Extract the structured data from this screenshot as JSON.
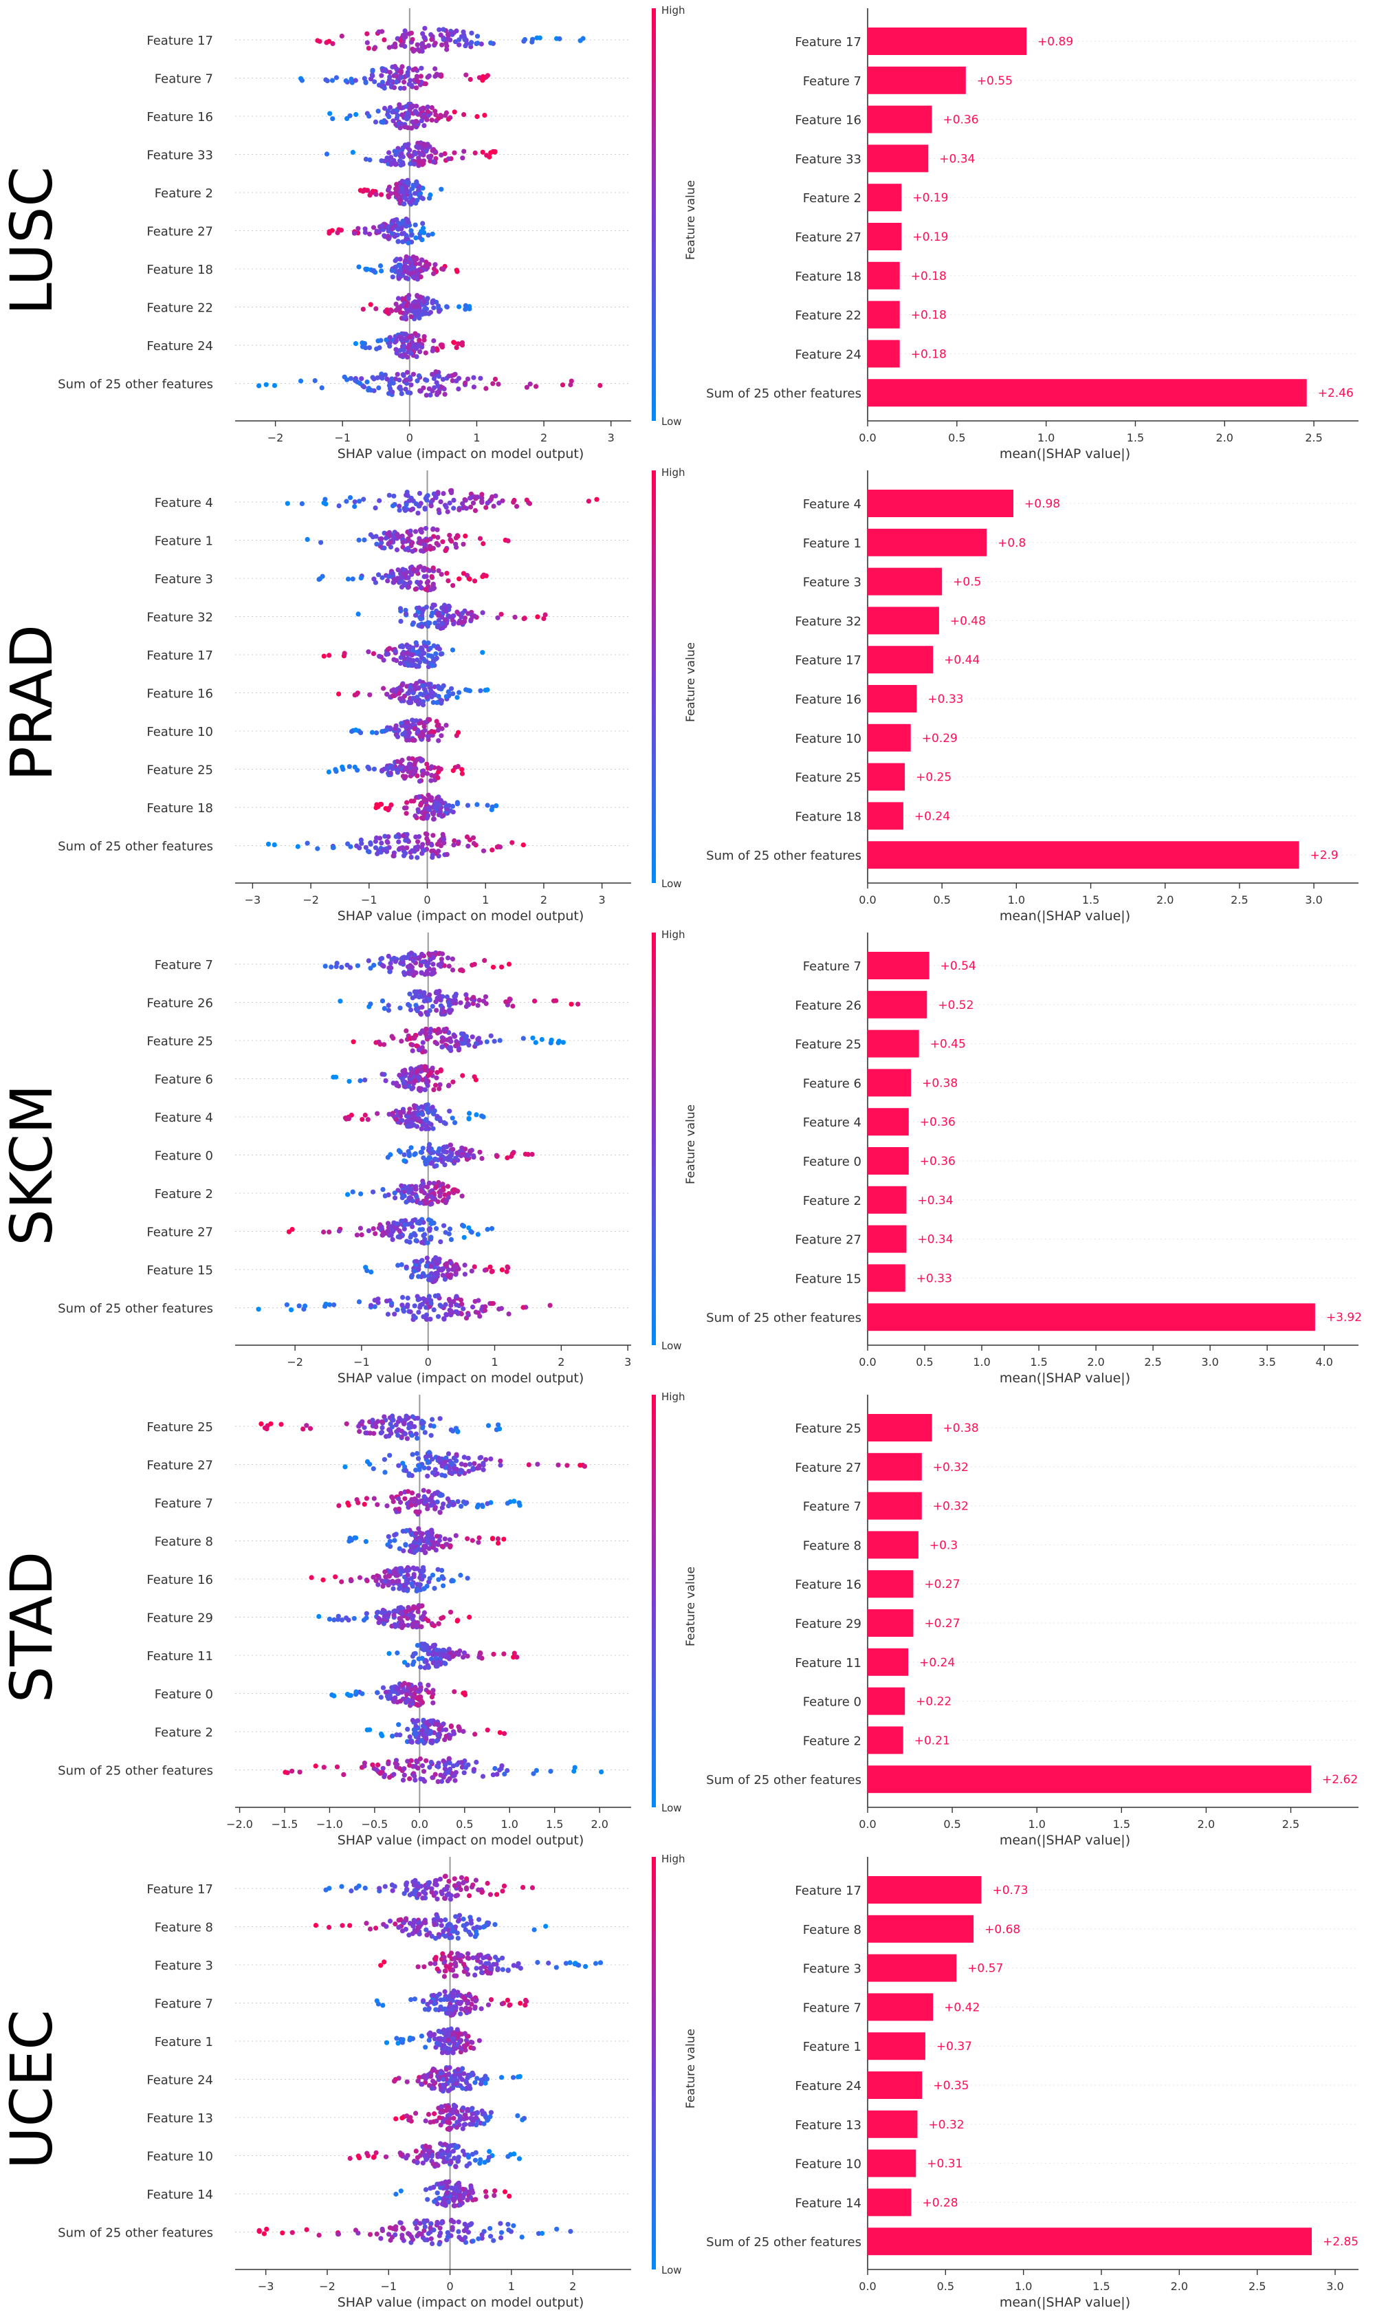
{
  "colors": {
    "low": "#008bfb",
    "mid": "#7c3bd6",
    "high": "#ff0052",
    "bar": "#ff0d57",
    "bar_label": "#ff0d57",
    "axis": "#333333",
    "zero_line": "#999999",
    "row_line": "#cccccc"
  },
  "colorbar": {
    "high_label": "High",
    "low_label": "Low",
    "title": "Feature value"
  },
  "chart_data": [
    {
      "panel": "LUSC",
      "type": "scatter",
      "kind": "beeswarm",
      "xlabel": "SHAP value (impact on model output)",
      "xlim": [
        -2.6,
        3.3
      ],
      "xticks": [
        -2,
        -1,
        0,
        1,
        2,
        3
      ],
      "features": [
        "Feature 17",
        "Feature 7",
        "Feature 16",
        "Feature 33",
        "Feature 2",
        "Feature 27",
        "Feature 18",
        "Feature 22",
        "Feature 24",
        "Sum of 25 other features"
      ],
      "ranges": [
        [
          -1.75,
          2.7
        ],
        [
          -1.7,
          1.35
        ],
        [
          -1.2,
          1.15
        ],
        [
          -1.25,
          1.3
        ],
        [
          -0.75,
          0.55
        ],
        [
          -1.2,
          0.5
        ],
        [
          -0.8,
          0.8
        ],
        [
          -0.7,
          0.95
        ],
        [
          -0.85,
          0.8
        ],
        [
          -2.4,
          3.1
        ]
      ]
    },
    {
      "panel": "LUSC",
      "type": "bar",
      "xlabel": "mean(|SHAP value|)",
      "xlim": [
        0,
        2.75
      ],
      "xticks": [
        0.0,
        0.5,
        1.0,
        1.5,
        2.0,
        2.5
      ],
      "categories": [
        "Feature 17",
        "Feature 7",
        "Feature 16",
        "Feature 33",
        "Feature 2",
        "Feature 27",
        "Feature 18",
        "Feature 22",
        "Feature 24",
        "Sum of 25 other features"
      ],
      "values": [
        0.89,
        0.55,
        0.36,
        0.34,
        0.19,
        0.19,
        0.18,
        0.18,
        0.18,
        2.46
      ],
      "value_labels": [
        "+0.89",
        "+0.55",
        "+0.36",
        "+0.34",
        "+0.19",
        "+0.19",
        "+0.18",
        "+0.18",
        "+0.18",
        "+2.46"
      ]
    },
    {
      "panel": "PRAD",
      "type": "scatter",
      "kind": "beeswarm",
      "xlabel": "SHAP value (impact on model output)",
      "xlim": [
        -3.3,
        3.5
      ],
      "xticks": [
        -3,
        -2,
        -1,
        0,
        1,
        2,
        3
      ],
      "features": [
        "Feature 4",
        "Feature 1",
        "Feature 3",
        "Feature 32",
        "Feature 17",
        "Feature 16",
        "Feature 10",
        "Feature 25",
        "Feature 18",
        "Sum of 25 other features"
      ],
      "ranges": [
        [
          -2.5,
          3.1
        ],
        [
          -2.5,
          1.4
        ],
        [
          -1.9,
          1.05
        ],
        [
          -1.2,
          2.1
        ],
        [
          -1.8,
          0.95
        ],
        [
          -1.65,
          1.1
        ],
        [
          -1.5,
          0.8
        ],
        [
          -1.75,
          0.7
        ],
        [
          -0.9,
          1.2
        ],
        [
          -2.85,
          2.2
        ]
      ]
    },
    {
      "panel": "PRAD",
      "type": "bar",
      "xlabel": "mean(|SHAP value|)",
      "xlim": [
        0,
        3.3
      ],
      "xticks": [
        0.0,
        0.5,
        1.0,
        1.5,
        2.0,
        2.5,
        3.0
      ],
      "categories": [
        "Feature 4",
        "Feature 1",
        "Feature 3",
        "Feature 32",
        "Feature 17",
        "Feature 16",
        "Feature 10",
        "Feature 25",
        "Feature 18",
        "Sum of 25 other features"
      ],
      "values": [
        0.98,
        0.8,
        0.5,
        0.48,
        0.44,
        0.33,
        0.29,
        0.25,
        0.24,
        2.9
      ],
      "value_labels": [
        "+0.98",
        "+0.8",
        "+0.5",
        "+0.48",
        "+0.44",
        "+0.33",
        "+0.29",
        "+0.25",
        "+0.24",
        "+2.9"
      ]
    },
    {
      "panel": "SKCM",
      "type": "scatter",
      "kind": "beeswarm",
      "xlabel": "SHAP value (impact on model output)",
      "xlim": [
        -2.9,
        3.05
      ],
      "xticks": [
        -2,
        -1,
        0,
        1,
        2,
        3
      ],
      "features": [
        "Feature 7",
        "Feature 26",
        "Feature 25",
        "Feature 6",
        "Feature 4",
        "Feature 0",
        "Feature 2",
        "Feature 27",
        "Feature 15",
        "Sum of 25 other features"
      ],
      "ranges": [
        [
          -1.9,
          1.3
        ],
        [
          -1.6,
          2.3
        ],
        [
          -1.15,
          2.05
        ],
        [
          -1.45,
          0.8
        ],
        [
          -1.35,
          0.9
        ],
        [
          -0.75,
          1.6
        ],
        [
          -1.25,
          0.95
        ],
        [
          -2.15,
          1.0
        ],
        [
          -0.95,
          1.25
        ],
        [
          -2.6,
          2.85
        ]
      ]
    },
    {
      "panel": "SKCM",
      "type": "bar",
      "xlabel": "mean(|SHAP value|)",
      "xlim": [
        0,
        4.3
      ],
      "xticks": [
        0.0,
        0.5,
        1.0,
        1.5,
        2.0,
        2.5,
        3.0,
        3.5,
        4.0
      ],
      "categories": [
        "Feature 7",
        "Feature 26",
        "Feature 25",
        "Feature 6",
        "Feature 4",
        "Feature 0",
        "Feature 2",
        "Feature 27",
        "Feature 15",
        "Sum of 25 other features"
      ],
      "values": [
        0.54,
        0.52,
        0.45,
        0.38,
        0.36,
        0.36,
        0.34,
        0.34,
        0.33,
        3.92
      ],
      "value_labels": [
        "+0.54",
        "+0.52",
        "+0.45",
        "+0.38",
        "+0.36",
        "+0.36",
        "+0.34",
        "+0.34",
        "+0.33",
        "+3.92"
      ]
    },
    {
      "panel": "STAD",
      "type": "scatter",
      "kind": "beeswarm",
      "xlabel": "SHAP value (impact on model output)",
      "xlim": [
        -2.05,
        2.35
      ],
      "xticks": [
        -2.0,
        -1.5,
        -1.0,
        -0.5,
        0.0,
        0.5,
        1.0,
        1.5,
        2.0
      ],
      "xtick_labels": [
        "−2.0",
        "−1.5",
        "−1.0",
        "−0.5",
        "0.0",
        "0.5",
        "1.0",
        "1.5",
        "2.0"
      ],
      "features": [
        "Feature 25",
        "Feature 27",
        "Feature 7",
        "Feature 8",
        "Feature 16",
        "Feature 29",
        "Feature 11",
        "Feature 0",
        "Feature 2",
        "Sum of 25 other features"
      ],
      "ranges": [
        [
          -1.8,
          0.95
        ],
        [
          -1.0,
          2.15
        ],
        [
          -0.95,
          1.2
        ],
        [
          -0.8,
          0.95
        ],
        [
          -1.25,
          0.75
        ],
        [
          -1.2,
          0.6
        ],
        [
          -0.45,
          1.1
        ],
        [
          -1.0,
          0.55
        ],
        [
          -0.6,
          0.95
        ],
        [
          -1.6,
          2.2
        ]
      ]
    },
    {
      "panel": "STAD",
      "type": "bar",
      "xlabel": "mean(|SHAP value|)",
      "xlim": [
        0,
        2.9
      ],
      "xticks": [
        0.0,
        0.5,
        1.0,
        1.5,
        2.0,
        2.5
      ],
      "categories": [
        "Feature 25",
        "Feature 27",
        "Feature 7",
        "Feature 8",
        "Feature 16",
        "Feature 29",
        "Feature 11",
        "Feature 0",
        "Feature 2",
        "Sum of 25 other features"
      ],
      "values": [
        0.38,
        0.32,
        0.32,
        0.3,
        0.27,
        0.27,
        0.24,
        0.22,
        0.21,
        2.62
      ],
      "value_labels": [
        "+0.38",
        "+0.32",
        "+0.32",
        "+0.3",
        "+0.27",
        "+0.27",
        "+0.24",
        "+0.22",
        "+0.21",
        "+2.62"
      ]
    },
    {
      "panel": "UCEC",
      "type": "scatter",
      "kind": "beeswarm",
      "xlabel": "SHAP value (impact on model output)",
      "xlim": [
        -3.5,
        2.95
      ],
      "xticks": [
        -3,
        -2,
        -1,
        0,
        1,
        2
      ],
      "features": [
        "Feature 17",
        "Feature 8",
        "Feature 3",
        "Feature 7",
        "Feature 1",
        "Feature 24",
        "Feature 13",
        "Feature 10",
        "Feature 14",
        "Sum of 25 other features"
      ],
      "ranges": [
        [
          -2.25,
          1.4
        ],
        [
          -2.4,
          1.6
        ],
        [
          -1.2,
          2.5
        ],
        [
          -1.2,
          1.3
        ],
        [
          -1.05,
          1.0
        ],
        [
          -1.3,
          1.2
        ],
        [
          -1.0,
          1.5
        ],
        [
          -1.7,
          1.25
        ],
        [
          -0.9,
          1.05
        ],
        [
          -3.25,
          2.6
        ]
      ]
    },
    {
      "panel": "UCEC",
      "type": "bar",
      "xlabel": "mean(|SHAP value|)",
      "xlim": [
        0,
        3.15
      ],
      "xticks": [
        0.0,
        0.5,
        1.0,
        1.5,
        2.0,
        2.5,
        3.0
      ],
      "categories": [
        "Feature 17",
        "Feature 8",
        "Feature 3",
        "Feature 7",
        "Feature 1",
        "Feature 24",
        "Feature 13",
        "Feature 10",
        "Feature 14",
        "Sum of 25 other features"
      ],
      "values": [
        0.73,
        0.68,
        0.57,
        0.42,
        0.37,
        0.35,
        0.32,
        0.31,
        0.28,
        2.85
      ],
      "value_labels": [
        "+0.73",
        "+0.68",
        "+0.57",
        "+0.42",
        "+0.37",
        "+0.35",
        "+0.32",
        "+0.31",
        "+0.28",
        "+2.85"
      ]
    }
  ]
}
